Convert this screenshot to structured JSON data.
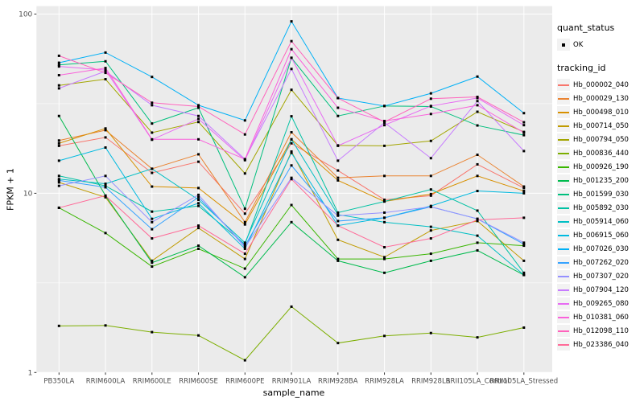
{
  "figure": {
    "panel_background": "#EBEBEB",
    "grid_color": "#FFFFFF",
    "tick_color": "#333333",
    "tick_label_color": "#4D4D4D",
    "axis_title_color": "#000000",
    "point_color": "#000000"
  },
  "chart_data": {
    "type": "line",
    "x_axis": {
      "label": "sample_name",
      "categories": [
        "PB350LA",
        "RRIM600LA",
        "RRIM600LE",
        "RRIM600SE",
        "RRIM600PE",
        "RRIM901LA",
        "RRIM928BA",
        "RRIM928LA",
        "RRIM928LB",
        "RRII105LA_Control",
        "RRII105LA_Stressed"
      ]
    },
    "y_axis": {
      "label": "FPKM + 1",
      "scale": "log10",
      "ticks": [
        1,
        10,
        100
      ],
      "minor_ticks": [
        3.162,
        31.62
      ],
      "range": [
        1,
        100
      ]
    },
    "legend": {
      "quant_status": {
        "title": "quant_status",
        "items": [
          "OK"
        ]
      },
      "tracking_id": {
        "title": "tracking_id"
      }
    },
    "series": [
      {
        "name": "Hb_000002_040",
        "color": "#F8766D",
        "values": [
          18.4,
          20.5,
          13.0,
          15.0,
          7.7,
          19.0,
          13.4,
          9.2,
          9.7,
          14.5,
          10.7
        ]
      },
      {
        "name": "Hb_000029_130",
        "color": "#EA8331",
        "values": [
          19.7,
          22.5,
          13.7,
          16.5,
          6.9,
          21.9,
          12.2,
          12.5,
          12.5,
          16.4,
          10.9
        ]
      },
      {
        "name": "Hb_000498_010",
        "color": "#D89000",
        "values": [
          19.0,
          23.0,
          10.9,
          10.7,
          6.7,
          20.0,
          11.8,
          9.0,
          9.9,
          12.5,
          10.3
        ]
      },
      {
        "name": "Hb_000714_050",
        "color": "#C09B00",
        "values": [
          11.5,
          9.5,
          4.2,
          6.4,
          4.3,
          17.1,
          5.5,
          4.4,
          6.2,
          7.0,
          4.2
        ]
      },
      {
        "name": "Hb_000794_050",
        "color": "#A3A500",
        "values": [
          40.0,
          43.3,
          21.8,
          25.0,
          12.9,
          37.8,
          18.5,
          18.4,
          19.6,
          28.5,
          22.0
        ]
      },
      {
        "name": "Hb_000836_440",
        "color": "#7CAE00",
        "values": [
          1.82,
          1.83,
          1.68,
          1.61,
          1.17,
          2.33,
          1.46,
          1.6,
          1.66,
          1.57,
          1.78
        ]
      },
      {
        "name": "Hb_000926_190",
        "color": "#39B600",
        "values": [
          8.3,
          6.0,
          3.9,
          4.9,
          3.8,
          8.6,
          4.3,
          4.3,
          4.6,
          5.3,
          5.1
        ]
      },
      {
        "name": "Hb_001235_200",
        "color": "#00BB4E",
        "values": [
          27.0,
          9.7,
          4.1,
          5.1,
          3.4,
          6.9,
          4.2,
          3.6,
          4.2,
          4.8,
          3.5
        ]
      },
      {
        "name": "Hb_001599_030",
        "color": "#00BF7D",
        "values": [
          52.0,
          54.5,
          24.5,
          30.0,
          8.2,
          57.0,
          27.0,
          30.7,
          30.5,
          23.9,
          21.1
        ]
      },
      {
        "name": "Hb_005892_030",
        "color": "#00C1A3",
        "values": [
          12.5,
          11.0,
          7.9,
          8.5,
          5.2,
          26.9,
          7.8,
          9.0,
          10.5,
          8.0,
          3.6
        ]
      },
      {
        "name": "Hb_005914_060",
        "color": "#00BFC4",
        "values": [
          12.0,
          11.3,
          13.7,
          9.2,
          5.3,
          20.0,
          7.6,
          6.9,
          6.5,
          5.8,
          3.5
        ]
      },
      {
        "name": "Hb_006915_060",
        "color": "#00BAE0",
        "values": [
          15.2,
          18.0,
          7.2,
          8.8,
          4.9,
          16.8,
          6.6,
          7.3,
          8.5,
          10.3,
          10.0
        ]
      },
      {
        "name": "Hb_007026_030",
        "color": "#00B0F6",
        "values": [
          53.5,
          61.0,
          44.6,
          31.0,
          25.5,
          91.0,
          34.0,
          30.7,
          36.1,
          44.8,
          28.0
        ]
      },
      {
        "name": "Hb_007262_020",
        "color": "#35A2FF",
        "values": [
          11.8,
          10.8,
          6.3,
          9.5,
          5.1,
          14.3,
          7.0,
          7.3,
          8.4,
          7.2,
          5.2
        ]
      },
      {
        "name": "Hb_007307_020",
        "color": "#9590FF",
        "values": [
          11.0,
          12.5,
          6.9,
          9.8,
          5.0,
          12.2,
          7.5,
          7.8,
          8.4,
          7.2,
          5.3
        ]
      },
      {
        "name": "Hb_007904_120",
        "color": "#C77CFF",
        "values": [
          38.5,
          48.0,
          31.0,
          27.0,
          15.5,
          49.4,
          15.2,
          24.8,
          15.7,
          32.7,
          17.2
        ]
      },
      {
        "name": "Hb_009265_080",
        "color": "#E76BF3",
        "values": [
          51.0,
          48.7,
          19.9,
          26.0,
          15.3,
          57.0,
          18.4,
          24.0,
          30.7,
          34.0,
          24.0
        ]
      },
      {
        "name": "Hb_010381_060",
        "color": "#FA62DB",
        "values": [
          45.6,
          50.0,
          20.0,
          20.0,
          15.5,
          63.7,
          30.0,
          25.3,
          27.7,
          31.0,
          21.8
        ]
      },
      {
        "name": "Hb_012098_110",
        "color": "#FF62BC",
        "values": [
          58.5,
          47.0,
          32.0,
          30.5,
          21.3,
          70.6,
          34.0,
          25.0,
          33.7,
          34.5,
          24.9
        ]
      },
      {
        "name": "Hb_023386_040",
        "color": "#FF6A98",
        "values": [
          8.3,
          9.7,
          5.6,
          6.6,
          4.6,
          12.0,
          6.6,
          5.0,
          5.6,
          7.1,
          7.3
        ]
      }
    ]
  }
}
